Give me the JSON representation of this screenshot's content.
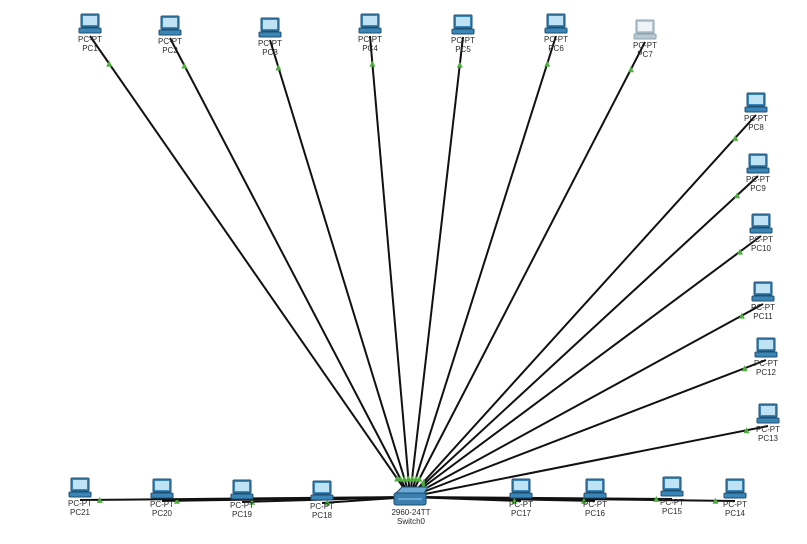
{
  "switch": {
    "model": "2960-24TT",
    "name": "Switch0"
  },
  "pcs": [
    {
      "type": "PC-PT",
      "name": "PC1",
      "state": "on"
    },
    {
      "type": "PC-PT",
      "name": "PC2",
      "state": "on"
    },
    {
      "type": "PC-PT",
      "name": "PC3",
      "state": "on"
    },
    {
      "type": "PC-PT",
      "name": "PC4",
      "state": "on"
    },
    {
      "type": "PC-PT",
      "name": "PC5",
      "state": "on"
    },
    {
      "type": "PC-PT",
      "name": "PC6",
      "state": "on"
    },
    {
      "type": "PC-PT",
      "name": "PC7",
      "state": "off"
    },
    {
      "type": "PC-PT",
      "name": "PC8",
      "state": "on"
    },
    {
      "type": "PC-PT",
      "name": "PC9",
      "state": "on"
    },
    {
      "type": "PC-PT",
      "name": "PC10",
      "state": "on"
    },
    {
      "type": "PC-PT",
      "name": "PC11",
      "state": "on"
    },
    {
      "type": "PC-PT",
      "name": "PC12",
      "state": "on"
    },
    {
      "type": "PC-PT",
      "name": "PC13",
      "state": "on"
    },
    {
      "type": "PC-PT",
      "name": "PC14",
      "state": "on"
    },
    {
      "type": "PC-PT",
      "name": "PC15",
      "state": "on"
    },
    {
      "type": "PC-PT",
      "name": "PC16",
      "state": "on"
    },
    {
      "type": "PC-PT",
      "name": "PC17",
      "state": "on"
    },
    {
      "type": "PC-PT",
      "name": "PC18",
      "state": "on"
    },
    {
      "type": "PC-PT",
      "name": "PC19",
      "state": "on"
    },
    {
      "type": "PC-PT",
      "name": "PC20",
      "state": "on"
    },
    {
      "type": "PC-PT",
      "name": "PC21",
      "state": "on"
    }
  ],
  "colors": {
    "cable": "#111111",
    "link_up": "#4caf3a",
    "pc_body": "#3a86b8",
    "pc_screen": "#bfe3f5",
    "pc_off_body": "#b9c9d3",
    "switch_body": "#3a7fb0"
  },
  "icons": {
    "pc": "desktop-computer-icon",
    "switch": "network-switch-icon",
    "link": "link-status-triangle-icon"
  }
}
